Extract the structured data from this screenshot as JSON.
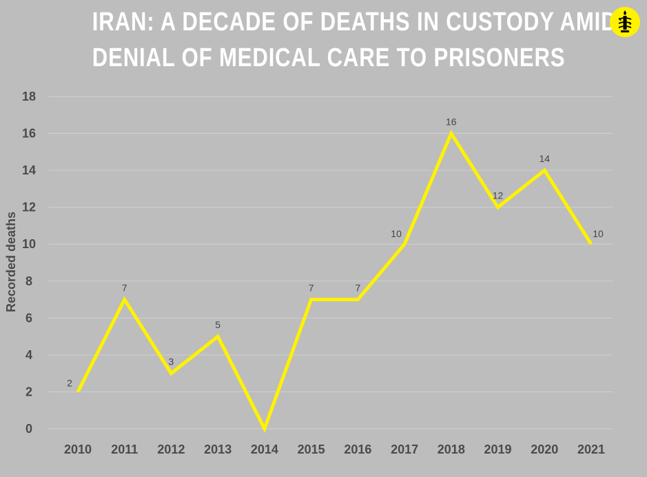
{
  "header": {
    "title_line1": "IRAN: A DECADE OF DEATHS IN CUSTODY AMID",
    "title_line2": "DENIAL OF MEDICAL CARE TO PRISONERS",
    "logo_icon": "candle-barbed-wire-icon"
  },
  "colors": {
    "background": "#bdbdbd",
    "line": "#fff200",
    "grid": "#d0d0d0",
    "text": "#4a4a4a"
  },
  "chart_data": {
    "type": "line",
    "title": "IRAN: A DECADE OF DEATHS IN CUSTODY AMID DENIAL OF MEDICAL CARE TO PRISONERS",
    "xlabel": "",
    "ylabel": "Recorded deaths",
    "categories": [
      "2010",
      "2011",
      "2012",
      "2013",
      "2014",
      "2015",
      "2016",
      "2017",
      "2018",
      "2019",
      "2020",
      "2021"
    ],
    "series": [
      {
        "values": [
          2,
          7,
          3,
          5,
          0,
          7,
          7,
          10,
          16,
          12,
          14,
          10
        ],
        "data_labels": [
          "2",
          "7",
          "3",
          "5",
          "",
          "7",
          "7",
          "10",
          "16",
          "12",
          "14",
          "10"
        ]
      }
    ],
    "ylim": [
      0,
      18
    ],
    "yticks": [
      0,
      2,
      4,
      6,
      8,
      10,
      12,
      14,
      16,
      18
    ],
    "grid": true,
    "legend": "none"
  }
}
